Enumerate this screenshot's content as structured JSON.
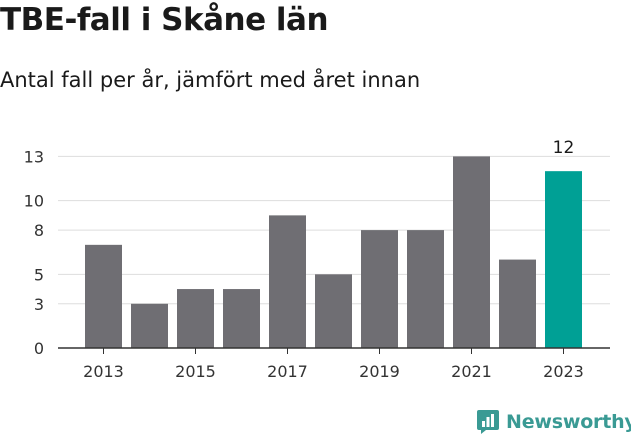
{
  "header": {
    "title": "TBE-fall i Skåne län",
    "subtitle": "Antal fall per år, jämfört med året innan"
  },
  "branding": {
    "name": "Newsworthy",
    "icon": "newsworthy-logo-icon"
  },
  "colors": {
    "bar": "#6f6e73",
    "highlight": "#00a095",
    "grid": "#dddddd",
    "axis": "#333333",
    "brand": "#3a9a94"
  },
  "chart_data": {
    "type": "bar",
    "categories": [
      "2013",
      "2014",
      "2015",
      "2016",
      "2017",
      "2018",
      "2019",
      "2020",
      "2021",
      "2022",
      "2023"
    ],
    "values": [
      7,
      3,
      4,
      4,
      9,
      5,
      8,
      8,
      13,
      6,
      12
    ],
    "highlight_index": 10,
    "data_labels": [
      {
        "index": 10,
        "text": "12"
      }
    ],
    "x_tick_labels": [
      "2013",
      "2015",
      "2017",
      "2019",
      "2021",
      "2023"
    ],
    "y_ticks": [
      0,
      3,
      5,
      8,
      10,
      13
    ],
    "ylim": [
      0,
      13.3
    ],
    "grid": true,
    "title": "TBE-fall i Skåne län",
    "subtitle": "Antal fall per år, jämfört med året innan",
    "xlabel": "",
    "ylabel": ""
  }
}
